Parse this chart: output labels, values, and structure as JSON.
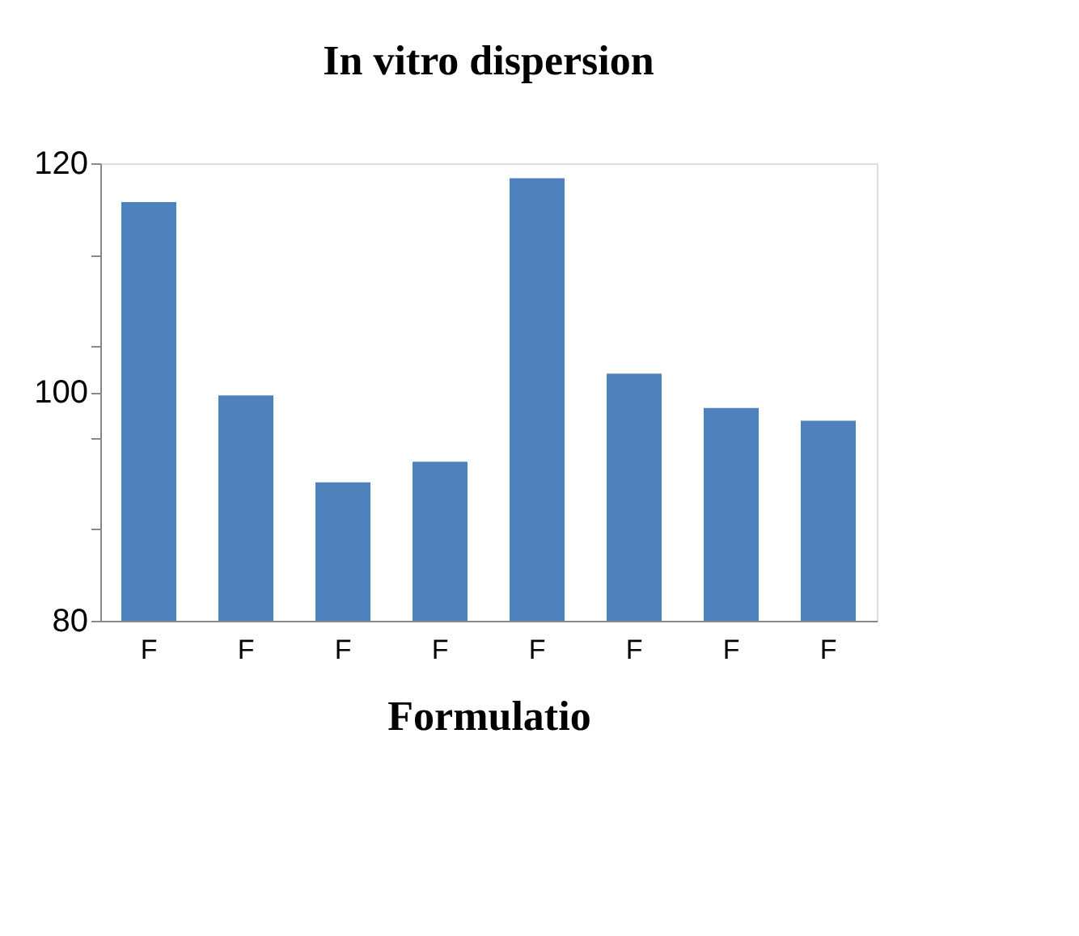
{
  "chart_data": {
    "type": "bar",
    "title": "In vitro dispersion",
    "xlabel": "Formulatio",
    "categories": [
      "F",
      "F",
      "F",
      "F",
      "F",
      "F",
      "F",
      "F"
    ],
    "values": [
      116.6,
      99.7,
      92.1,
      93.9,
      118.7,
      101.6,
      98.6,
      97.5
    ],
    "color": "#4f81bd",
    "ylim": [
      80,
      120
    ],
    "yticks": [
      80,
      {
        "value": 88,
        "label": null
      },
      {
        "value": 96,
        "label": null
      },
      100,
      {
        "value": 104,
        "label": null
      },
      {
        "value": 112,
        "label": null
      },
      120
    ],
    "grid": false
  }
}
